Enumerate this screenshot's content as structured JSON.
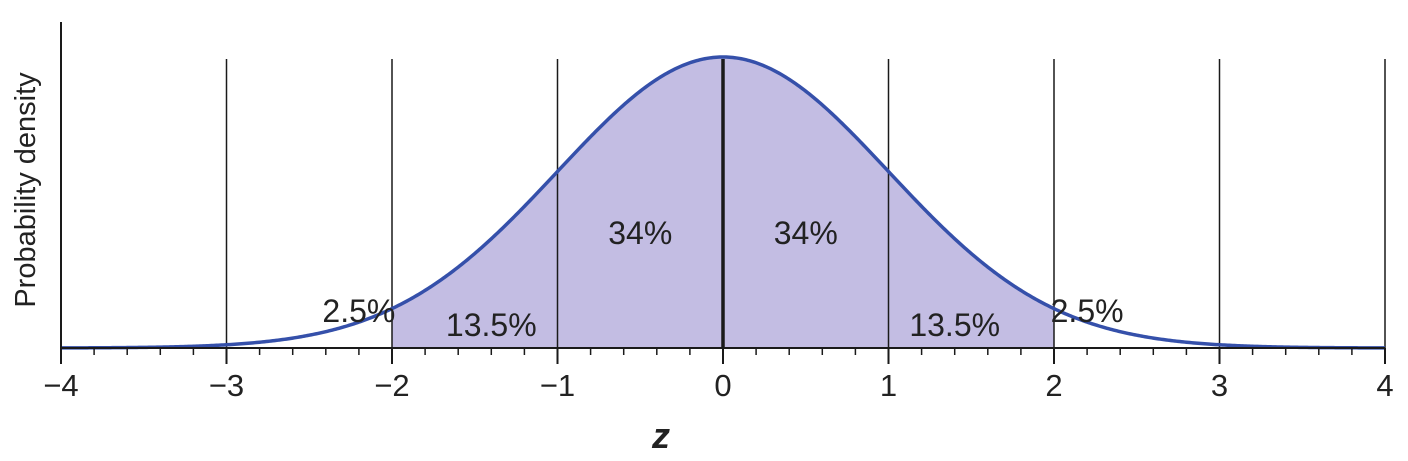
{
  "chart_data": {
    "type": "area",
    "xlabel": "z",
    "ylabel": "Probability density",
    "xlim": [
      -4,
      4
    ],
    "x_ticks": [
      -4,
      -3,
      -2,
      -1,
      0,
      1,
      2,
      3,
      4
    ],
    "x_tick_labels": [
      "−4",
      "−3",
      "−2",
      "−1",
      "0",
      "1",
      "2",
      "3",
      "4"
    ],
    "minor_tick_step": 0.2,
    "grid_vertical_at": [
      -3,
      -2,
      -1,
      0,
      1,
      2,
      3,
      4
    ],
    "series": [
      {
        "distribution": "standard normal",
        "mean": 0,
        "sd": 1
      }
    ],
    "shaded_range": [
      -2,
      2
    ],
    "regions": [
      {
        "text": "2.5%",
        "from": -3,
        "to": -2
      },
      {
        "text": "13.5%",
        "from": -2,
        "to": -1
      },
      {
        "text": "34%",
        "from": -1,
        "to": 0
      },
      {
        "text": "34%",
        "from": 0,
        "to": 1
      },
      {
        "text": "13.5%",
        "from": 1,
        "to": 2
      },
      {
        "text": "2.5%",
        "from": 2,
        "to": 3
      }
    ],
    "colors": {
      "curve": "#3550aa",
      "fill": "#c3bde3",
      "grid": "#1a1a1a",
      "axis": "#1a1a1a",
      "text": "#222222"
    }
  }
}
